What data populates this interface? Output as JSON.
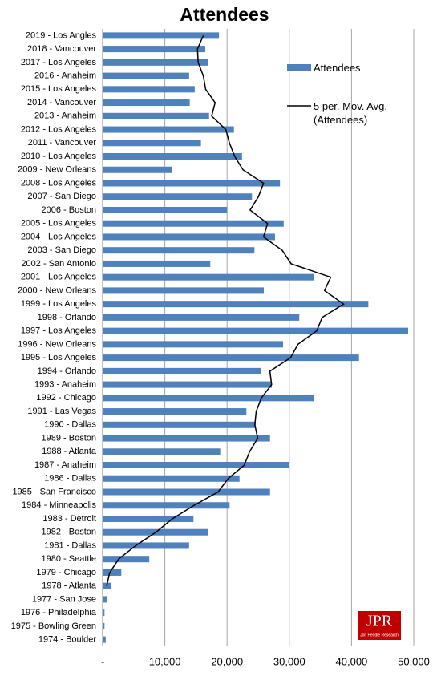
{
  "chart_data": {
    "type": "bar",
    "orientation": "horizontal",
    "title": "Attendees",
    "categories": [
      "2019 - Los Angles",
      "2018 - Vancouver",
      "2017 - Los Angeles",
      "2016 - Anaheim",
      "2015 - Los Angeles",
      "2014 - Vancouver",
      "2013 - Anaheim",
      "2012 - Los Angeles",
      "2011 - Vancouver",
      "2010 - Los Angeles",
      "2009 - New Orleans",
      "2008 - Los Angeles",
      "2007 - San Diego",
      "2006 - Boston",
      "2005 - Los Angeles",
      "2004 - Los Angeles",
      "2003 - San Diego",
      "2002 - San Antonio",
      "2001 - Los Angeles",
      "2000 - New Orleans",
      "1999 - Los Angeles",
      "1998 - Orlando",
      "1997 - Los Angeles",
      "1996 - New Orleans",
      "1995 - Los Angeles",
      "1994 - Orlando",
      "1993 - Anaheim",
      "1992 - Chicago",
      "1991 - Las Vegas",
      "1990 - Dallas",
      "1989 - Boston",
      "1988 - Atlanta",
      "1987 - Anaheim",
      "1986 - Dallas",
      "1985 - San Francisco",
      "1984 - Minneapolis",
      "1983 - Detroit",
      "1982 - Boston",
      "1981 - Dallas",
      "1980 - Seattle",
      "1979 - Chicago",
      "1978 - Atlanta",
      "1977 - San Jose",
      "1976 - Philadelphia",
      "1975 - Bowling Green",
      "1974 - Boulder"
    ],
    "series": [
      {
        "name": "Attendees",
        "type": "bar",
        "color": "#4f81bd",
        "values": [
          18700,
          16500,
          17000,
          13900,
          14800,
          14000,
          17100,
          21100,
          15800,
          22400,
          11200,
          28500,
          24000,
          20000,
          29100,
          27700,
          24400,
          17300,
          34000,
          25900,
          42700,
          31600,
          49100,
          29000,
          41200,
          25500,
          27200,
          34000,
          23100,
          24600,
          26900,
          18900,
          29900,
          22000,
          26900,
          20400,
          14600,
          17000,
          13900,
          7500,
          3000,
          1400,
          700,
          300,
          300,
          500
        ]
      },
      {
        "name": "5 per. Mov. Avg. (Attendees)",
        "type": "line",
        "color": "#000000",
        "values": [
          16180,
          15240,
          15360,
          16180,
          16560,
          18080,
          17520,
          19800,
          20380,
          21220,
          22560,
          25860,
          25040,
          23700,
          26500,
          25860,
          28860,
          30300,
          36660,
          35660,
          38720,
          35280,
          34400,
          31380,
          30200,
          26880,
          27160,
          25500,
          24680,
          24460,
          24920,
          23620,
          22760,
          20180,
          18560,
          14680,
          11200,
          8560,
          5300,
          2580,
          1140,
          640,
          null,
          null,
          null,
          null
        ]
      }
    ],
    "xlim": [
      0,
      50000
    ],
    "xticks": [
      {
        "value": 0,
        "label": "-"
      },
      {
        "value": 10000,
        "label": "10,000"
      },
      {
        "value": 20000,
        "label": "20,000"
      },
      {
        "value": 30000,
        "label": "30,000"
      },
      {
        "value": 40000,
        "label": "40,000"
      },
      {
        "value": 50000,
        "label": "50,000"
      }
    ],
    "grid": true,
    "legend": "upper right",
    "logo": {
      "text": "JPR",
      "subtext": "Jon Peddie Research"
    }
  }
}
